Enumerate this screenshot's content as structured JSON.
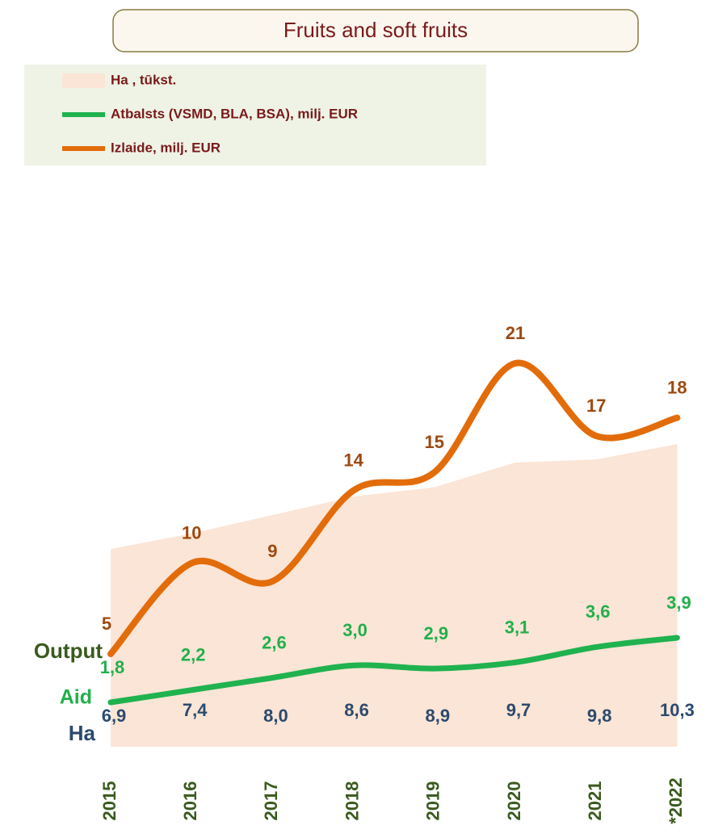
{
  "chart_data": {
    "type": "line",
    "title": "Fruits and soft fruits",
    "categories": [
      "2015",
      "2016",
      "2017",
      "2018",
      "2019",
      "2020",
      "2021",
      "*2022"
    ],
    "series": [
      {
        "name": "Ha , tūkst.",
        "label": "Ha",
        "kind": "area",
        "color": "#fbe5d6",
        "label_color": "#2c4a6e",
        "values": [
          6.9,
          7.4,
          8.0,
          8.6,
          8.9,
          9.7,
          9.8,
          10.3
        ],
        "value_labels": [
          "6,9",
          "7,4",
          "8,0",
          "8,6",
          "8,9",
          "9,7",
          "9,8",
          "10,3"
        ]
      },
      {
        "name": "Atbalsts (VSMD, BLA, BSA), milj. EUR",
        "label": "Aid",
        "kind": "line",
        "color": "#1fb24f",
        "label_color": "#22b04b",
        "values": [
          1.8,
          2.2,
          2.6,
          3.0,
          2.9,
          3.1,
          3.6,
          3.9
        ],
        "value_labels": [
          "1,8",
          "2,2",
          "2,6",
          "3,0",
          "2,9",
          "3,1",
          "3,6",
          "3,9"
        ]
      },
      {
        "name": "Izlaide, milj. EUR",
        "label": "Output",
        "kind": "line",
        "color": "#e36c0a",
        "label_color": "#3a5a1e",
        "values": [
          5,
          10,
          9,
          14,
          15,
          21,
          17,
          18
        ]
      }
    ]
  }
}
